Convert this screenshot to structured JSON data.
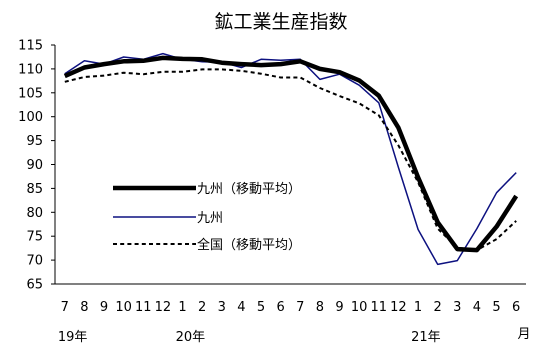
{
  "chart_data": {
    "type": "line",
    "title": "鉱工業生産指数",
    "ylim": [
      65,
      115
    ],
    "yticks": [
      65,
      70,
      75,
      80,
      85,
      90,
      95,
      100,
      105,
      110,
      115
    ],
    "xticklabels": [
      "7",
      "8",
      "9",
      "10",
      "11",
      "12",
      "1",
      "2",
      "3",
      "4",
      "5",
      "6",
      "7",
      "8",
      "9",
      "10",
      "11",
      "12",
      "1",
      "2",
      "3",
      "4",
      "5",
      "6"
    ],
    "year_labels": [
      {
        "label": "19年",
        "index": 0
      },
      {
        "label": "20年",
        "index": 6
      },
      {
        "label": "21年",
        "index": 18
      }
    ],
    "x_unit": "月",
    "grid": false,
    "legend_placement": "lower-left",
    "series": [
      {
        "name": "九州（移動平均）",
        "color": "#000000",
        "style": "thick-solid",
        "values": [
          108.5,
          110.3,
          111.0,
          111.6,
          111.7,
          112.3,
          112.1,
          112.0,
          111.3,
          111.0,
          110.8,
          111.0,
          111.6,
          110.0,
          109.3,
          107.6,
          104.4,
          97.7,
          87.3,
          77.9,
          72.3,
          72.1,
          77.0,
          83.4
        ]
      },
      {
        "name": "九州",
        "color": "#0d1180",
        "style": "thin-solid",
        "values": [
          109.0,
          111.7,
          111.0,
          112.5,
          112.0,
          113.2,
          112.0,
          111.5,
          111.4,
          110.3,
          112.0,
          111.8,
          112.0,
          107.8,
          108.9,
          106.6,
          102.9,
          89.4,
          76.4,
          69.1,
          69.9,
          76.6,
          84.1,
          88.3
        ]
      },
      {
        "name": "全国（移動平均）",
        "color": "#000000",
        "style": "dotted",
        "values": [
          107.3,
          108.3,
          108.6,
          109.2,
          108.9,
          109.4,
          109.4,
          109.9,
          109.9,
          109.6,
          109.0,
          108.2,
          108.2,
          106.0,
          104.3,
          102.8,
          100.3,
          94.0,
          86.3,
          76.6,
          72.6,
          72.1,
          74.4,
          78.2
        ]
      }
    ]
  }
}
